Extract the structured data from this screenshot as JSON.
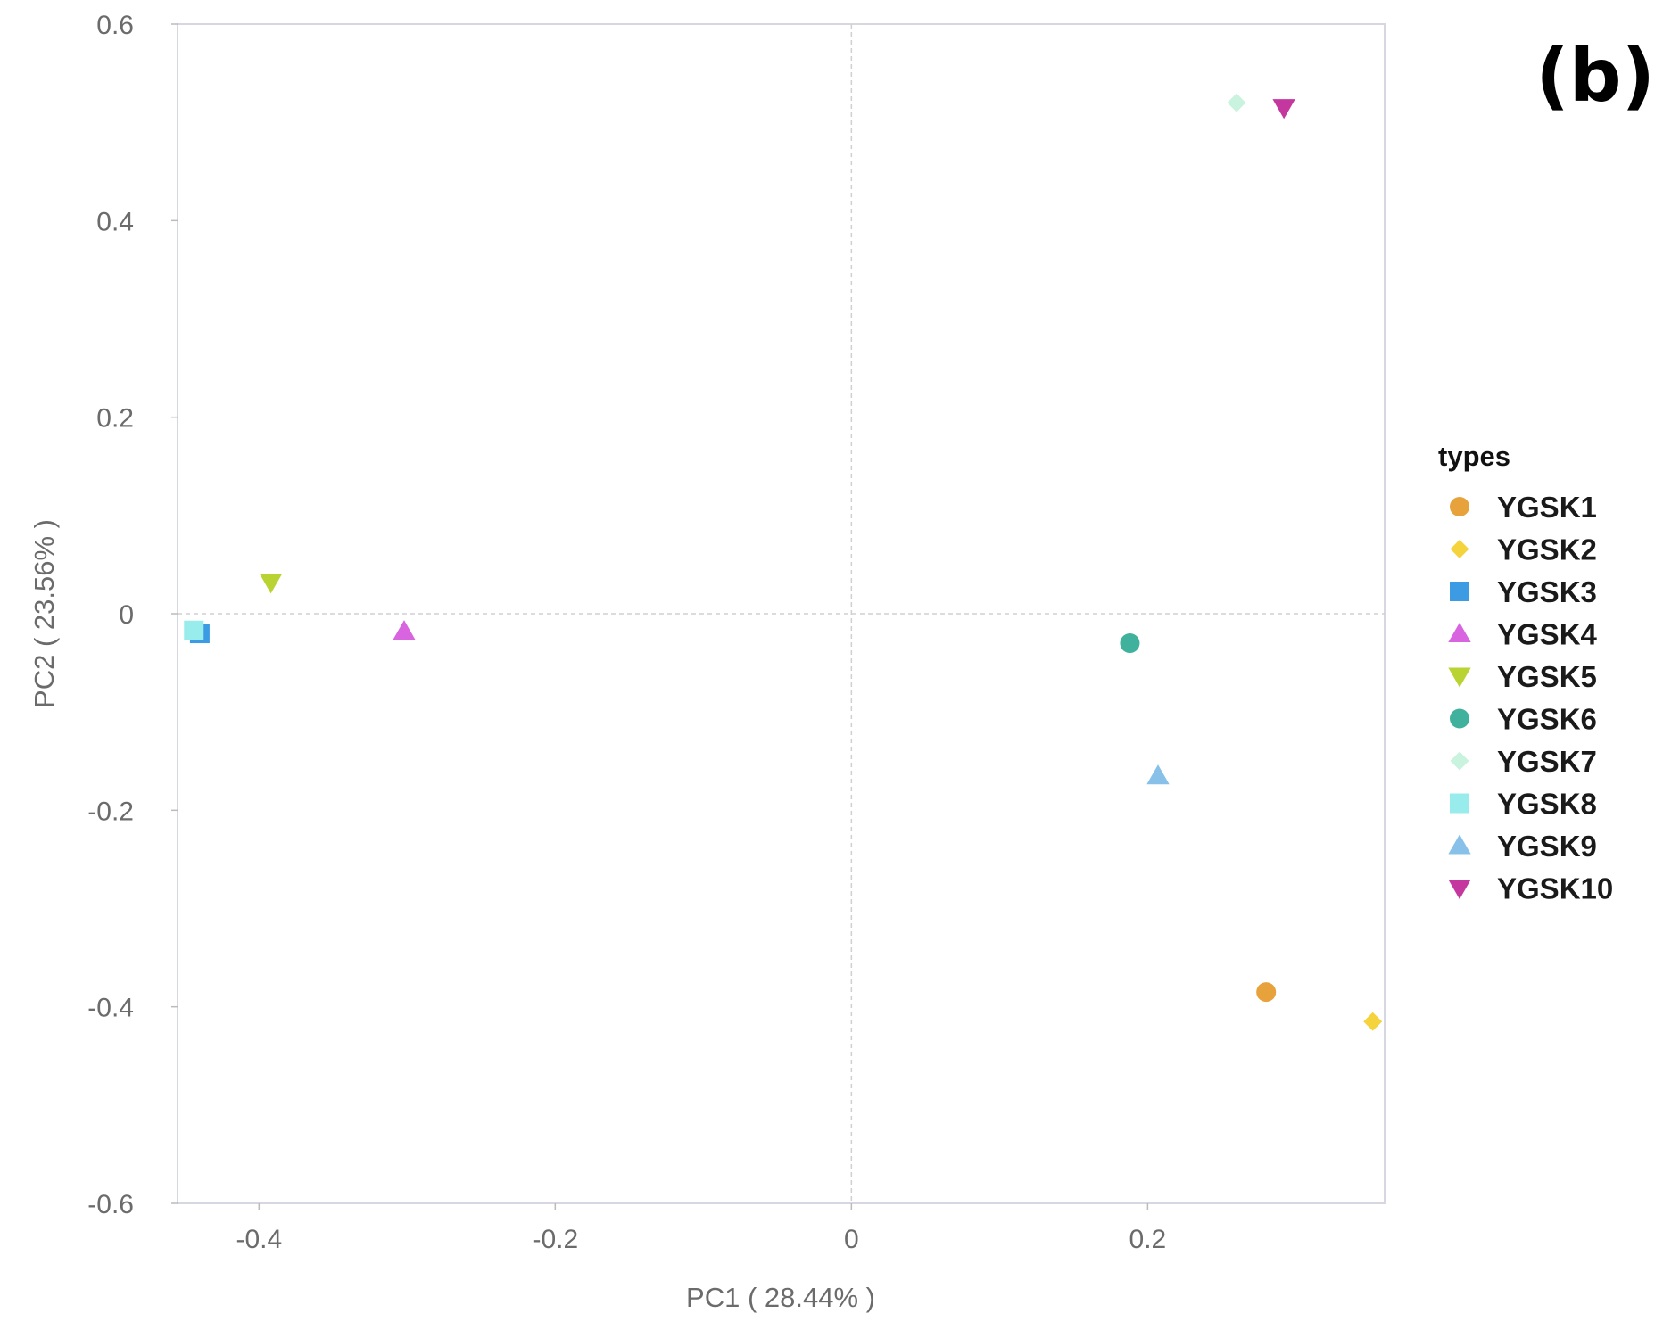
{
  "panel_label": "(b)",
  "chart_data": {
    "type": "scatter",
    "xlabel": "PC1 ( 28.44% )",
    "ylabel": "PC2 ( 23.56% )",
    "xlim": [
      -0.455,
      0.36
    ],
    "ylim": [
      -0.6,
      0.6
    ],
    "xticks": [
      -0.4,
      -0.2,
      0,
      0.2
    ],
    "xtick_labels": [
      "-0.4",
      "-0.2",
      "0",
      "0.2"
    ],
    "yticks": [
      0.6,
      0.4,
      0.2,
      0,
      -0.2,
      -0.4,
      -0.6
    ],
    "ytick_labels": [
      "0.6",
      "0.4",
      "0.2",
      "0",
      "-0.2",
      "-0.4",
      "-0.6"
    ],
    "grid": false,
    "reference_lines": {
      "x": 0,
      "y": 0
    },
    "legend_title": "types",
    "legend_position": "right",
    "series": [
      {
        "name": "YGSK1",
        "shape": "circle",
        "color": "#E8A23C",
        "x": 0.28,
        "y": -0.385
      },
      {
        "name": "YGSK2",
        "shape": "diamond",
        "color": "#F5D33C",
        "x": 0.352,
        "y": -0.415
      },
      {
        "name": "YGSK3",
        "shape": "square",
        "color": "#3D9BE3",
        "x": -0.44,
        "y": -0.02
      },
      {
        "name": "YGSK4",
        "shape": "triangle-up",
        "color": "#D864E0",
        "x": -0.302,
        "y": -0.018
      },
      {
        "name": "YGSK5",
        "shape": "triangle-down",
        "color": "#B9D432",
        "x": -0.392,
        "y": 0.032
      },
      {
        "name": "YGSK6",
        "shape": "circle",
        "color": "#3FB19C",
        "x": 0.188,
        "y": -0.03
      },
      {
        "name": "YGSK7",
        "shape": "diamond",
        "color": "#C9F3DE",
        "x": 0.26,
        "y": 0.52
      },
      {
        "name": "YGSK8",
        "shape": "square",
        "color": "#98ECEC",
        "x": -0.444,
        "y": -0.017
      },
      {
        "name": "YGSK9",
        "shape": "triangle-up",
        "color": "#87C1EA",
        "x": 0.207,
        "y": -0.165
      },
      {
        "name": "YGSK10",
        "shape": "triangle-down",
        "color": "#C4379E",
        "x": 0.292,
        "y": 0.515
      }
    ]
  }
}
